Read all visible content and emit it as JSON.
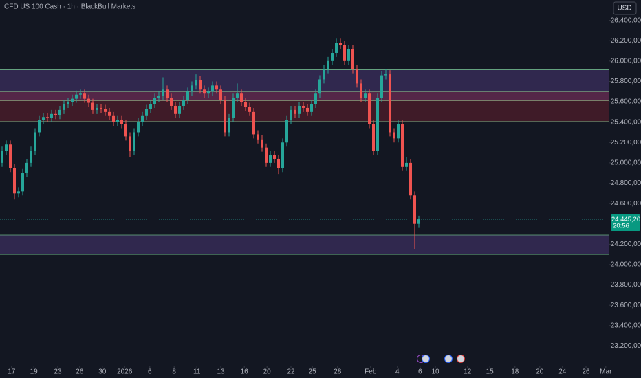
{
  "chart_data": {
    "type": "candlestick",
    "title": "CFD US 100 Cash · 1h · BlackBull Markets",
    "currency": "USD",
    "up_color": "#26a69a",
    "down_color": "#ef5350",
    "ylim": [
      23000,
      26600
    ],
    "yticks": [
      {
        "value": 23200,
        "label": "23.200,00"
      },
      {
        "value": 23400,
        "label": "23.400,00"
      },
      {
        "value": 23600,
        "label": "23.600,00"
      },
      {
        "value": 23800,
        "label": "23.800,00"
      },
      {
        "value": 24000,
        "label": "24.000,00"
      },
      {
        "value": 24200,
        "label": "24.200,00"
      },
      {
        "value": 24600,
        "label": "24.600,00"
      },
      {
        "value": 24800,
        "label": "24.800,00"
      },
      {
        "value": 25000,
        "label": "25.000,00"
      },
      {
        "value": 25200,
        "label": "25.200,00"
      },
      {
        "value": 25400,
        "label": "25.400,00"
      },
      {
        "value": 25600,
        "label": "25.600,00"
      },
      {
        "value": 25800,
        "label": "25.800,00"
      },
      {
        "value": 26000,
        "label": "26.000,00"
      },
      {
        "value": 26200,
        "label": "26.200,00"
      },
      {
        "value": 26400,
        "label": "26.400,00"
      }
    ],
    "xlim": [
      0,
      147.5
    ],
    "xticks": [
      {
        "value": 2.8,
        "label": "17"
      },
      {
        "value": 8.2,
        "label": "19"
      },
      {
        "value": 14,
        "label": "23"
      },
      {
        "value": 19.3,
        "label": "26"
      },
      {
        "value": 24.8,
        "label": "30"
      },
      {
        "value": 30.2,
        "label": "2026"
      },
      {
        "value": 36.3,
        "label": "6"
      },
      {
        "value": 42.2,
        "label": "8"
      },
      {
        "value": 47.7,
        "label": "11"
      },
      {
        "value": 53.5,
        "label": "13"
      },
      {
        "value": 59.2,
        "label": "16"
      },
      {
        "value": 64.7,
        "label": "20"
      },
      {
        "value": 70.5,
        "label": "22"
      },
      {
        "value": 75.7,
        "label": "25"
      },
      {
        "value": 81.8,
        "label": "28"
      },
      {
        "value": 89.8,
        "label": "Feb"
      },
      {
        "value": 96.3,
        "label": "4"
      },
      {
        "value": 101.8,
        "label": "6"
      },
      {
        "value": 105.5,
        "label": "10"
      },
      {
        "value": 113.3,
        "label": "12"
      },
      {
        "value": 118.7,
        "label": "15"
      },
      {
        "value": 124.8,
        "label": "18"
      },
      {
        "value": 130.8,
        "label": "20"
      },
      {
        "value": 136.3,
        "label": "24"
      },
      {
        "value": 142,
        "label": "26"
      },
      {
        "value": 146.8,
        "label": "Mar"
      }
    ],
    "zones": [
      {
        "top": 25915,
        "bottom": 25610,
        "color": "#7e57c2"
      },
      {
        "top": 25700,
        "bottom": 25405,
        "color": "#b2283a"
      },
      {
        "top": 24290,
        "bottom": 24100,
        "color": "#7e57c2"
      }
    ],
    "zone_border_color": "#7fd99a",
    "last_price": {
      "value": 24445.2,
      "label": "24.445,20"
    },
    "countdown": "20:56",
    "candles": [
      [
        25000,
        25160,
        24960,
        25120
      ],
      [
        25120,
        25220,
        25080,
        25180
      ],
      [
        25180,
        25220,
        24910,
        24950
      ],
      [
        24950,
        24990,
        24640,
        24700
      ],
      [
        24700,
        24760,
        24660,
        24720
      ],
      [
        24720,
        24940,
        24680,
        24900
      ],
      [
        24900,
        25040,
        24860,
        25000
      ],
      [
        25000,
        25160,
        24960,
        25120
      ],
      [
        25120,
        25340,
        25080,
        25300
      ],
      [
        25300,
        25460,
        25260,
        25420
      ],
      [
        25420,
        25490,
        25380,
        25450
      ],
      [
        25450,
        25490,
        25400,
        25440
      ],
      [
        25440,
        25520,
        25400,
        25480
      ],
      [
        25480,
        25520,
        25430,
        25470
      ],
      [
        25470,
        25560,
        25430,
        25520
      ],
      [
        25520,
        25620,
        25480,
        25580
      ],
      [
        25580,
        25640,
        25540,
        25600
      ],
      [
        25600,
        25670,
        25560,
        25630
      ],
      [
        25630,
        25710,
        25590,
        25670
      ],
      [
        25670,
        25720,
        25630,
        25680
      ],
      [
        25680,
        25720,
        25590,
        25630
      ],
      [
        25630,
        25670,
        25550,
        25590
      ],
      [
        25590,
        25630,
        25480,
        25520
      ],
      [
        25520,
        25580,
        25480,
        25540
      ],
      [
        25540,
        25580,
        25490,
        25530
      ],
      [
        25530,
        25570,
        25460,
        25500
      ],
      [
        25500,
        25540,
        25420,
        25460
      ],
      [
        25460,
        25500,
        25360,
        25400
      ],
      [
        25400,
        25460,
        25360,
        25420
      ],
      [
        25420,
        25460,
        25340,
        25380
      ],
      [
        25380,
        25420,
        25220,
        25260
      ],
      [
        25260,
        25300,
        25060,
        25120
      ],
      [
        25120,
        25340,
        25080,
        25300
      ],
      [
        25300,
        25440,
        25260,
        25400
      ],
      [
        25400,
        25500,
        25360,
        25460
      ],
      [
        25460,
        25570,
        25420,
        25530
      ],
      [
        25530,
        25620,
        25490,
        25580
      ],
      [
        25580,
        25680,
        25540,
        25640
      ],
      [
        25640,
        25700,
        25600,
        25660
      ],
      [
        25660,
        25840,
        25620,
        25720
      ],
      [
        25720,
        25760,
        25600,
        25640
      ],
      [
        25640,
        25680,
        25520,
        25560
      ],
      [
        25560,
        25600,
        25440,
        25480
      ],
      [
        25480,
        25600,
        25440,
        25560
      ],
      [
        25560,
        25660,
        25520,
        25620
      ],
      [
        25620,
        25740,
        25580,
        25700
      ],
      [
        25700,
        25800,
        25660,
        25760
      ],
      [
        25760,
        25870,
        25720,
        25810
      ],
      [
        25810,
        25850,
        25680,
        25720
      ],
      [
        25720,
        25760,
        25640,
        25680
      ],
      [
        25680,
        25740,
        25640,
        25700
      ],
      [
        25700,
        25800,
        25660,
        25760
      ],
      [
        25760,
        25800,
        25680,
        25720
      ],
      [
        25720,
        25760,
        25580,
        25620
      ],
      [
        25620,
        25660,
        25260,
        25300
      ],
      [
        25300,
        25480,
        25260,
        25440
      ],
      [
        25440,
        25680,
        25400,
        25640
      ],
      [
        25640,
        25780,
        25600,
        25680
      ],
      [
        25680,
        25720,
        25560,
        25600
      ],
      [
        25600,
        25640,
        25510,
        25550
      ],
      [
        25550,
        25590,
        25460,
        25500
      ],
      [
        25500,
        25540,
        25240,
        25280
      ],
      [
        25280,
        25320,
        25190,
        25230
      ],
      [
        25230,
        25270,
        25110,
        25150
      ],
      [
        25150,
        25190,
        24960,
        25000
      ],
      [
        25000,
        25120,
        24960,
        25080
      ],
      [
        25080,
        25120,
        25000,
        25040
      ],
      [
        25040,
        25080,
        24890,
        24950
      ],
      [
        24950,
        25240,
        24910,
        25200
      ],
      [
        25200,
        25460,
        25160,
        25420
      ],
      [
        25420,
        25560,
        25380,
        25520
      ],
      [
        25520,
        25560,
        25440,
        25480
      ],
      [
        25480,
        25600,
        25440,
        25560
      ],
      [
        25560,
        25600,
        25500,
        25540
      ],
      [
        25540,
        25580,
        25460,
        25500
      ],
      [
        25500,
        25620,
        25460,
        25580
      ],
      [
        25580,
        25720,
        25540,
        25680
      ],
      [
        25680,
        25860,
        25640,
        25820
      ],
      [
        25820,
        25960,
        25780,
        25920
      ],
      [
        25920,
        26040,
        25880,
        26000
      ],
      [
        26000,
        26120,
        25960,
        26080
      ],
      [
        26080,
        26220,
        26040,
        26180
      ],
      [
        26180,
        26220,
        26120,
        26160
      ],
      [
        26160,
        26200,
        25960,
        26000
      ],
      [
        26000,
        26160,
        25960,
        26120
      ],
      [
        26120,
        26160,
        25880,
        25920
      ],
      [
        25920,
        25960,
        25740,
        25780
      ],
      [
        25780,
        25820,
        25600,
        25640
      ],
      [
        25640,
        25720,
        25600,
        25680
      ],
      [
        25680,
        25720,
        25340,
        25380
      ],
      [
        25380,
        25420,
        25080,
        25120
      ],
      [
        25120,
        25680,
        25080,
        25640
      ],
      [
        25640,
        25900,
        25600,
        25860
      ],
      [
        25860,
        25920,
        25820,
        25870
      ],
      [
        25870,
        25910,
        25260,
        25300
      ],
      [
        25300,
        25340,
        25200,
        25240
      ],
      [
        25240,
        25420,
        25200,
        25380
      ],
      [
        25380,
        25420,
        24920,
        24960
      ],
      [
        24960,
        25060,
        24920,
        25000
      ],
      [
        25000,
        25040,
        24640,
        24680
      ],
      [
        24680,
        24720,
        24150,
        24400
      ],
      [
        24400,
        24480,
        24360,
        24445
      ]
    ]
  }
}
